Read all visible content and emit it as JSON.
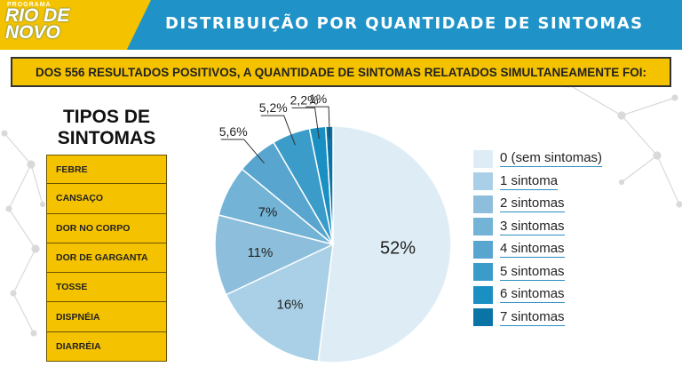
{
  "header": {
    "logo_small": "PROGRAMA",
    "logo_line1": "RIO DE",
    "logo_line2": "NOVO",
    "title": "DISTRIBUIÇÃO POR QUANTIDADE DE SINTOMAS"
  },
  "subtitle": "DOS 556 RESULTADOS POSITIVOS, A QUANTIDADE DE SINTOMAS RELATADOS SIMULTANEAMENTE FOI:",
  "symptom_types": {
    "title_line1": "TIPOS DE",
    "title_line2": "SINTOMAS",
    "items": [
      "FEBRE",
      "CANSAÇO",
      "DOR NO CORPO",
      "DOR DE GARGANTA",
      "TOSSE",
      "DISPNÉIA",
      "DIARRÉIA"
    ]
  },
  "colors": {
    "header_blue": "#1f93c7",
    "brand_yellow": "#f5c200"
  },
  "chart_data": {
    "type": "pie",
    "categories": [
      "0 (sem sintomas)",
      "1 sintoma",
      "2 sintomas",
      "3 sintomas",
      "4 sintomas",
      "5 sintomas",
      "6 sintomas",
      "7 sintomas"
    ],
    "values": [
      52,
      16,
      11,
      7,
      5.6,
      5.2,
      2.2,
      1
    ],
    "data_labels": [
      "52%",
      "16%",
      "11%",
      "7%",
      "5,6%",
      "5,2%",
      "2,2%",
      "1%"
    ],
    "colors": [
      "#deedf5",
      "#a9d0e6",
      "#8dbfdc",
      "#72b3d6",
      "#58a6cf",
      "#3b9cc9",
      "#1a8fc1",
      "#0b74a6"
    ],
    "legend_position": "right"
  }
}
